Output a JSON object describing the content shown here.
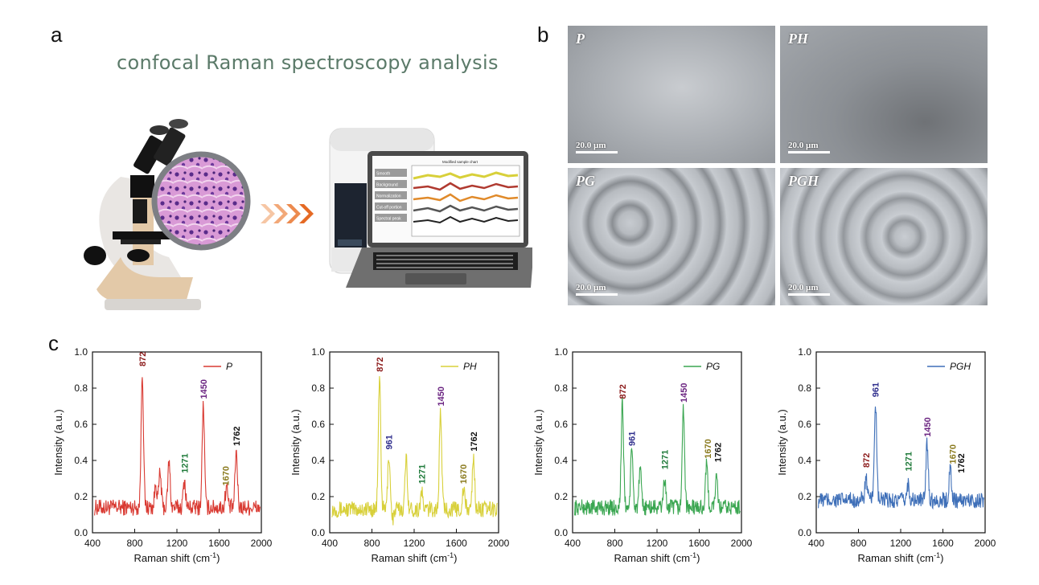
{
  "panels": {
    "a": "a",
    "b": "b",
    "c": "c"
  },
  "panel_a": {
    "title": "confocal Raman spectroscopy analysis"
  },
  "laptop_screen": {
    "menu": [
      "Smooth",
      "Background",
      "Normalization",
      "Cut-off portion",
      "Spectral peak"
    ],
    "plot_title": "Modified sample chart"
  },
  "micrographs": [
    {
      "label": "P",
      "scale": "20.0 µm"
    },
    {
      "label": "PH",
      "scale": "20.0 µm"
    },
    {
      "label": "PG",
      "scale": "20.0 µm"
    },
    {
      "label": "PGH",
      "scale": "20.0 µm"
    }
  ],
  "colors": {
    "P": "#d93a32",
    "PH": "#d8d03a",
    "PG": "#3aa651",
    "PGH": "#3e6fb8",
    "p872": "#8b1a1a",
    "p961": "#2e2d8c",
    "p1271": "#1f7a3a",
    "p1450": "#6a2380",
    "p1670": "#8a7a1e",
    "p1762": "#111111"
  },
  "chart_data": [
    {
      "type": "line",
      "series_name": "P",
      "color": "#d93a32",
      "xlabel": "Raman shift (cm",
      "xlabel_sup": "-1",
      "xlabel_end": ")",
      "ylabel": "Intensity (a.u.)",
      "xlim": [
        400,
        2000
      ],
      "ylim": [
        0.0,
        1.0
      ],
      "xticks": [
        400,
        800,
        1200,
        1600,
        2000
      ],
      "yticks": [
        "0.0",
        "0.2",
        "0.4",
        "0.6",
        "0.8",
        "1.0"
      ],
      "baseline": 0.14,
      "peaks": [
        {
          "x": 872,
          "y": 0.89
        },
        {
          "x": 1000,
          "y": 0.27
        },
        {
          "x": 1040,
          "y": 0.33
        },
        {
          "x": 1125,
          "y": 0.39
        },
        {
          "x": 1271,
          "y": 0.29
        },
        {
          "x": 1450,
          "y": 0.71
        },
        {
          "x": 1670,
          "y": 0.26
        },
        {
          "x": 1762,
          "y": 0.45
        }
      ],
      "annotations": [
        {
          "text": "872",
          "x": 872,
          "y": 0.92,
          "color": "#8b1a1a"
        },
        {
          "text": "1271",
          "x": 1271,
          "y": 0.33,
          "color": "#1f7a3a"
        },
        {
          "text": "1450",
          "x": 1450,
          "y": 0.74,
          "color": "#6a2380"
        },
        {
          "text": "1670",
          "x": 1660,
          "y": 0.26,
          "color": "#8a7a1e"
        },
        {
          "text": "1762",
          "x": 1762,
          "y": 0.48,
          "color": "#111111"
        }
      ]
    },
    {
      "type": "line",
      "series_name": "PH",
      "color": "#d8d03a",
      "xlabel": "Raman shift (cm",
      "xlabel_sup": "-1",
      "xlabel_end": ")",
      "ylabel": "Intensity (a.u.)",
      "xlim": [
        400,
        2000
      ],
      "ylim": [
        0.0,
        1.0
      ],
      "xticks": [
        400,
        800,
        1200,
        1600,
        2000
      ],
      "yticks": [
        "0.0",
        "0.2",
        "0.4",
        "0.6",
        "0.8",
        "1.0"
      ],
      "baseline": 0.13,
      "peaks": [
        {
          "x": 872,
          "y": 0.86
        },
        {
          "x": 961,
          "y": 0.43
        },
        {
          "x": 1000,
          "y": 0.08
        },
        {
          "x": 1125,
          "y": 0.41
        },
        {
          "x": 1271,
          "y": 0.22
        },
        {
          "x": 1450,
          "y": 0.67
        },
        {
          "x": 1670,
          "y": 0.24
        },
        {
          "x": 1762,
          "y": 0.42
        }
      ],
      "annotations": [
        {
          "text": "872",
          "x": 872,
          "y": 0.89,
          "color": "#8b1a1a"
        },
        {
          "text": "961",
          "x": 961,
          "y": 0.46,
          "color": "#2e2d8c"
        },
        {
          "text": "1271",
          "x": 1271,
          "y": 0.27,
          "color": "#1f7a3a"
        },
        {
          "text": "1450",
          "x": 1450,
          "y": 0.7,
          "color": "#6a2380"
        },
        {
          "text": "1670",
          "x": 1665,
          "y": 0.27,
          "color": "#8a7a1e"
        },
        {
          "text": "1762",
          "x": 1762,
          "y": 0.45,
          "color": "#111111"
        }
      ]
    },
    {
      "type": "line",
      "series_name": "PG",
      "color": "#3aa651",
      "xlabel": "Raman shift (cm",
      "xlabel_sup": "-1",
      "xlabel_end": ")",
      "ylabel": "Intensity (a.u.)",
      "xlim": [
        400,
        2000
      ],
      "ylim": [
        0.0,
        1.0
      ],
      "xticks": [
        400,
        800,
        1200,
        1600,
        2000
      ],
      "yticks": [
        "0.0",
        "0.2",
        "0.4",
        "0.6",
        "0.8",
        "1.0"
      ],
      "baseline": 0.14,
      "peaks": [
        {
          "x": 872,
          "y": 0.71
        },
        {
          "x": 961,
          "y": 0.45
        },
        {
          "x": 1040,
          "y": 0.34
        },
        {
          "x": 1271,
          "y": 0.3
        },
        {
          "x": 1450,
          "y": 0.69
        },
        {
          "x": 1670,
          "y": 0.37
        },
        {
          "x": 1762,
          "y": 0.3
        }
      ],
      "annotations": [
        {
          "text": "872",
          "x": 872,
          "y": 0.74,
          "color": "#8b1a1a"
        },
        {
          "text": "961",
          "x": 961,
          "y": 0.48,
          "color": "#2e2d8c"
        },
        {
          "text": "1271",
          "x": 1271,
          "y": 0.35,
          "color": "#1f7a3a"
        },
        {
          "text": "1450",
          "x": 1450,
          "y": 0.72,
          "color": "#6a2380"
        },
        {
          "text": "1670",
          "x": 1680,
          "y": 0.41,
          "color": "#8a7a1e"
        },
        {
          "text": "1762",
          "x": 1775,
          "y": 0.39,
          "color": "#111111"
        }
      ]
    },
    {
      "type": "line",
      "series_name": "PGH",
      "color": "#3e6fb8",
      "xlabel": "Raman shift (cm",
      "xlabel_sup": "-1",
      "xlabel_end": ")",
      "ylabel": "Intensity (a.u.)",
      "xlim": [
        400,
        2000
      ],
      "ylim": [
        0.0,
        1.0
      ],
      "xticks": [
        400,
        800,
        1200,
        1600,
        2000
      ],
      "yticks": [
        "0.0",
        "0.2",
        "0.4",
        "0.6",
        "0.8",
        "1.0"
      ],
      "baseline": 0.18,
      "peaks": [
        {
          "x": 872,
          "y": 0.3
        },
        {
          "x": 961,
          "y": 0.72
        },
        {
          "x": 1271,
          "y": 0.27
        },
        {
          "x": 1450,
          "y": 0.5
        },
        {
          "x": 1670,
          "y": 0.36
        }
      ],
      "annotations": [
        {
          "text": "872",
          "x": 872,
          "y": 0.36,
          "color": "#8b1a1a"
        },
        {
          "text": "961",
          "x": 961,
          "y": 0.75,
          "color": "#2e2d8c"
        },
        {
          "text": "1271",
          "x": 1271,
          "y": 0.34,
          "color": "#1f7a3a"
        },
        {
          "text": "1450",
          "x": 1450,
          "y": 0.53,
          "color": "#6a2380"
        },
        {
          "text": "1670",
          "x": 1690,
          "y": 0.38,
          "color": "#8a7a1e"
        },
        {
          "text": "1762",
          "x": 1770,
          "y": 0.33,
          "color": "#111111"
        }
      ]
    }
  ]
}
